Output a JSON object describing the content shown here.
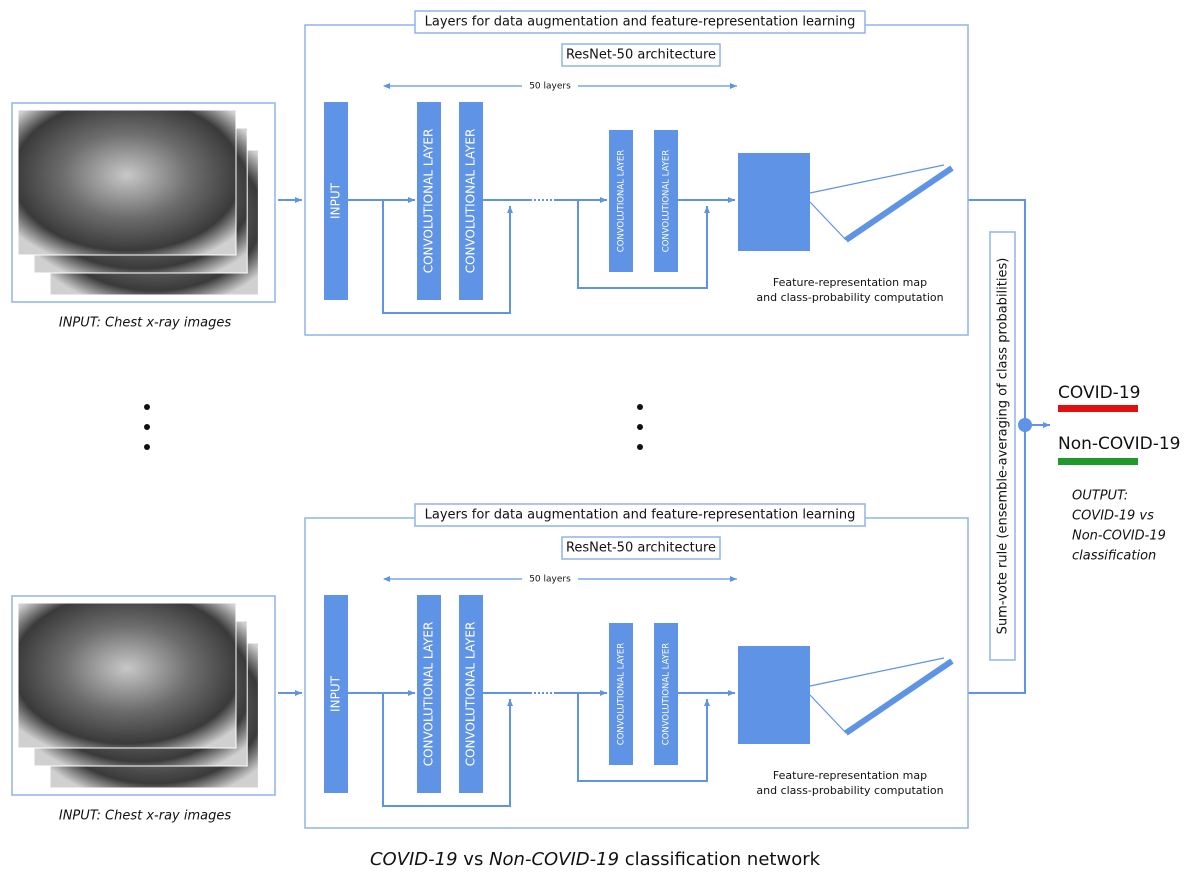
{
  "pipelines": [
    {
      "input_caption": "INPUT: Chest x-ray images",
      "box_title": "Layers for data augmentation and feature-representation learning",
      "arch_title": "ResNet-50 architecture",
      "layers_label": "50 layers",
      "input_layer": "INPUT",
      "conv_layers": [
        "CONVOLUTIONAL LAYER",
        "CONVOLUTIONAL LAYER",
        "CONVOLUTIONAL LAYER",
        "CONVOLUTIONAL LAYER"
      ],
      "feature_caption": [
        "Feature-representation map",
        "and class-probability computation"
      ]
    },
    {
      "input_caption": "INPUT: Chest x-ray images",
      "box_title": "Layers for data augmentation and feature-representation learning",
      "arch_title": "ResNet-50 architecture",
      "layers_label": "50 layers",
      "input_layer": "INPUT",
      "conv_layers": [
        "CONVOLUTIONAL LAYER",
        "CONVOLUTIONAL LAYER",
        "CONVOLUTIONAL LAYER",
        "CONVOLUTIONAL LAYER"
      ],
      "feature_caption": [
        "Feature-representation map",
        "and class-probability computation"
      ]
    }
  ],
  "vote_label": "Sum-vote rule (ensemble-averaging of class probabilities)",
  "outputs": [
    "COVID-19",
    "Non-COVID-19"
  ],
  "output_caption": [
    "OUTPUT:",
    "COVID-19 vs",
    "Non-COVID-19",
    "classification"
  ],
  "title": [
    "COVID-19",
    " vs ",
    "Non-COVID-19",
    " classification network"
  ]
}
